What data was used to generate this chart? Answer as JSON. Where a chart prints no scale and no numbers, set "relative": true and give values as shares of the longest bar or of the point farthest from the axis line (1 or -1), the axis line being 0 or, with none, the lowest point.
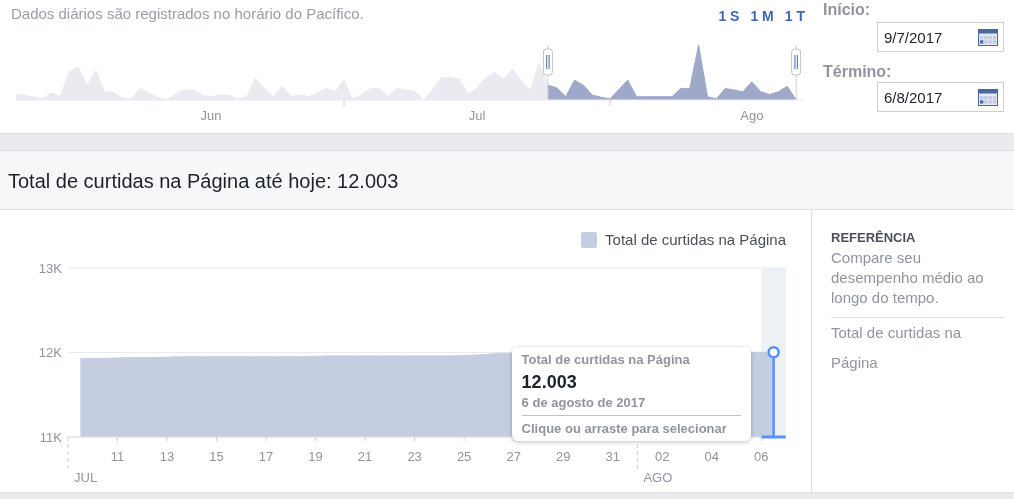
{
  "chart_data": [
    {
      "type": "area",
      "relative": true,
      "annotations": [
        "Dados diários são registrados no horário do Pacífico.",
        "1 S",
        "1 M",
        "1 T"
      ],
      "xlim": [
        "2017-05-10",
        "2017-08-07"
      ],
      "xticks": [
        {
          "value": "2017-06-01",
          "label": "Jun"
        },
        {
          "value": "2017-06-16",
          "label": null
        },
        {
          "value": "2017-07-01",
          "label": "Jul"
        },
        {
          "value": "2017-07-16",
          "label": null
        },
        {
          "value": "2017-08-01",
          "label": "Ago"
        }
      ],
      "ref_lines": [
        {
          "axis": "x",
          "value": "2017-07-09",
          "color": "#ccd0d5"
        },
        {
          "axis": "x",
          "value": "2017-08-06",
          "color": "#ccd0d5"
        }
      ],
      "series": [
        {
          "color": "#e9ebf0",
          "x": [
            "2017-05-10",
            "2017-05-11",
            "2017-05-12",
            "2017-05-13",
            "2017-05-14",
            "2017-05-15",
            "2017-05-16",
            "2017-05-17",
            "2017-05-18",
            "2017-05-19",
            "2017-05-20",
            "2017-05-21",
            "2017-05-22",
            "2017-05-23",
            "2017-05-24",
            "2017-05-25",
            "2017-05-26",
            "2017-05-27",
            "2017-05-28",
            "2017-05-29",
            "2017-05-30",
            "2017-05-31",
            "2017-06-01",
            "2017-06-02",
            "2017-06-03",
            "2017-06-04",
            "2017-06-05",
            "2017-06-06",
            "2017-06-07",
            "2017-06-08",
            "2017-06-09",
            "2017-06-10",
            "2017-06-11",
            "2017-06-12",
            "2017-06-13",
            "2017-06-14",
            "2017-06-15",
            "2017-06-16",
            "2017-06-17",
            "2017-06-18",
            "2017-06-19",
            "2017-06-20",
            "2017-06-21",
            "2017-06-22",
            "2017-06-23",
            "2017-06-24",
            "2017-06-25",
            "2017-06-26",
            "2017-06-27",
            "2017-06-28",
            "2017-06-29",
            "2017-06-30",
            "2017-07-01",
            "2017-07-02",
            "2017-07-03",
            "2017-07-04",
            "2017-07-05",
            "2017-07-06",
            "2017-07-07",
            "2017-07-08",
            "2017-07-09"
          ],
          "values": [
            0.1,
            0.09,
            0.05,
            0.02,
            0.13,
            0.06,
            0.51,
            0.6,
            0.27,
            0.53,
            0.15,
            0.14,
            0.03,
            0.02,
            0.21,
            0.13,
            0.05,
            0,
            0.11,
            0.18,
            0.18,
            0.09,
            0.06,
            0.09,
            0.09,
            0.02,
            0.05,
            0.39,
            0.21,
            0.06,
            0.25,
            0.06,
            0.09,
            0.06,
            0.13,
            0.21,
            0.15,
            0.36,
            0.02,
            0.09,
            0.21,
            0.21,
            0.06,
            0.21,
            0.18,
            0.15,
            0,
            0.19,
            0.41,
            0.41,
            0.38,
            0.1,
            0.22,
            0.41,
            0.5,
            0.38,
            0.56,
            0.35,
            0.17,
            0.67,
            0.27
          ]
        },
        {
          "color": "#9ea8c8",
          "x": [
            "2017-07-09",
            "2017-07-10",
            "2017-07-11",
            "2017-07-12",
            "2017-07-13",
            "2017-07-14",
            "2017-07-15",
            "2017-07-16",
            "2017-07-17",
            "2017-07-18",
            "2017-07-19",
            "2017-07-20",
            "2017-07-21",
            "2017-07-22",
            "2017-07-23",
            "2017-07-24",
            "2017-07-25",
            "2017-07-26",
            "2017-07-27",
            "2017-07-28",
            "2017-07-29",
            "2017-07-30",
            "2017-07-31",
            "2017-08-01",
            "2017-08-02",
            "2017-08-03",
            "2017-08-04",
            "2017-08-05",
            "2017-08-06"
          ],
          "values": [
            0.27,
            0.22,
            0.06,
            0.36,
            0.27,
            0.09,
            0.05,
            0.02,
            0.19,
            0.36,
            0.06,
            0.06,
            0.06,
            0.06,
            0.06,
            0.21,
            0.21,
            1,
            0.06,
            0.02,
            0.21,
            0.18,
            0.15,
            0.33,
            0.15,
            0.1,
            0.15,
            0.25,
            0
          ]
        }
      ]
    },
    {
      "type": "other",
      "annotations": [
        "Início:",
        "9/7/2017",
        "Término:",
        "6/8/2017"
      ]
    },
    {
      "type": "area",
      "title": "Total de curtidas na Página até hoje: 12.003",
      "x": [
        "2017-07-09T12:00",
        "2017-07-10T12:00",
        "2017-07-11T12:00",
        "2017-07-12T12:00",
        "2017-07-13T12:00",
        "2017-07-14T12:00",
        "2017-07-15T12:00",
        "2017-07-16T12:00",
        "2017-07-17T12:00",
        "2017-07-18T12:00",
        "2017-07-19T12:00",
        "2017-07-20T12:00",
        "2017-07-21T12:00",
        "2017-07-22T12:00",
        "2017-07-23T12:00",
        "2017-07-24T12:00",
        "2017-07-25T12:00",
        "2017-07-26T12:00",
        "2017-07-27T12:00",
        "2017-07-28T12:00",
        "2017-07-29T12:00",
        "2017-07-30T12:00",
        "2017-07-31T12:00",
        "2017-08-01T12:00",
        "2017-08-02T12:00",
        "2017-08-03T12:00",
        "2017-08-04T12:00",
        "2017-08-05T12:00",
        "2017-08-06T12:00"
      ],
      "series": [
        {
          "name": "Total de curtidas na Página",
          "color": "#c5cde0",
          "values": [
            11930,
            11930,
            11940,
            11940,
            11950,
            11950,
            11950,
            11950,
            11950,
            11950,
            11960,
            11960,
            11960,
            11960,
            11960,
            11960,
            11970,
            11990,
            null,
            null,
            null,
            null,
            null,
            null,
            null,
            null,
            null,
            null,
            12003
          ]
        }
      ],
      "xlim": [
        "2017-07-09",
        "2017-08-07"
      ],
      "xticks": [
        {
          "value": "2017-07-11",
          "label": "11"
        },
        {
          "value": "2017-07-13",
          "label": "13"
        },
        {
          "value": "2017-07-15",
          "label": "15"
        },
        {
          "value": "2017-07-17",
          "label": "17"
        },
        {
          "value": "2017-07-19",
          "label": "19"
        },
        {
          "value": "2017-07-21",
          "label": "21"
        },
        {
          "value": "2017-07-23",
          "label": "23"
        },
        {
          "value": "2017-07-25",
          "label": "25"
        },
        {
          "value": "2017-07-27",
          "label": "27"
        },
        {
          "value": "2017-07-29",
          "label": "29"
        },
        {
          "value": "2017-07-31",
          "label": "31"
        },
        {
          "value": "2017-08-02",
          "label": "02"
        },
        {
          "value": "2017-08-04",
          "label": "04"
        },
        {
          "value": "2017-08-06",
          "label": "06"
        }
      ],
      "ylim": [
        11000,
        13000
      ],
      "yticks": [
        {
          "value": 11000,
          "label": "11K"
        },
        {
          "value": 12000,
          "label": "12K"
        },
        {
          "value": 13000,
          "label": "13K"
        }
      ],
      "grid": "y",
      "legend": "top right",
      "ref_lines": [
        {
          "axis": "x",
          "value": "2017-07-09",
          "label": "JUL",
          "line_style": "dashed"
        },
        {
          "axis": "x",
          "value": "2017-08-01",
          "label": "AGO",
          "line_style": "dashed"
        }
      ],
      "bands": [
        {
          "axis": "x",
          "from": "2017-08-06",
          "to": "2017-08-07",
          "color": "#edf0f5"
        }
      ],
      "annotations": [
        {
          "text": "Total de curtidas na Página\n12.003\n6 de agosto de 2017\nClique ou arraste para selecionar",
          "x": "2017-08-06T12:00",
          "y": 12003
        }
      ]
    },
    {
      "type": "other",
      "title": "REFERÊNCIA",
      "annotations": [
        "Compare seu desempenho médio ao longo do tempo.",
        "Total de curtidas na Página"
      ]
    }
  ]
}
